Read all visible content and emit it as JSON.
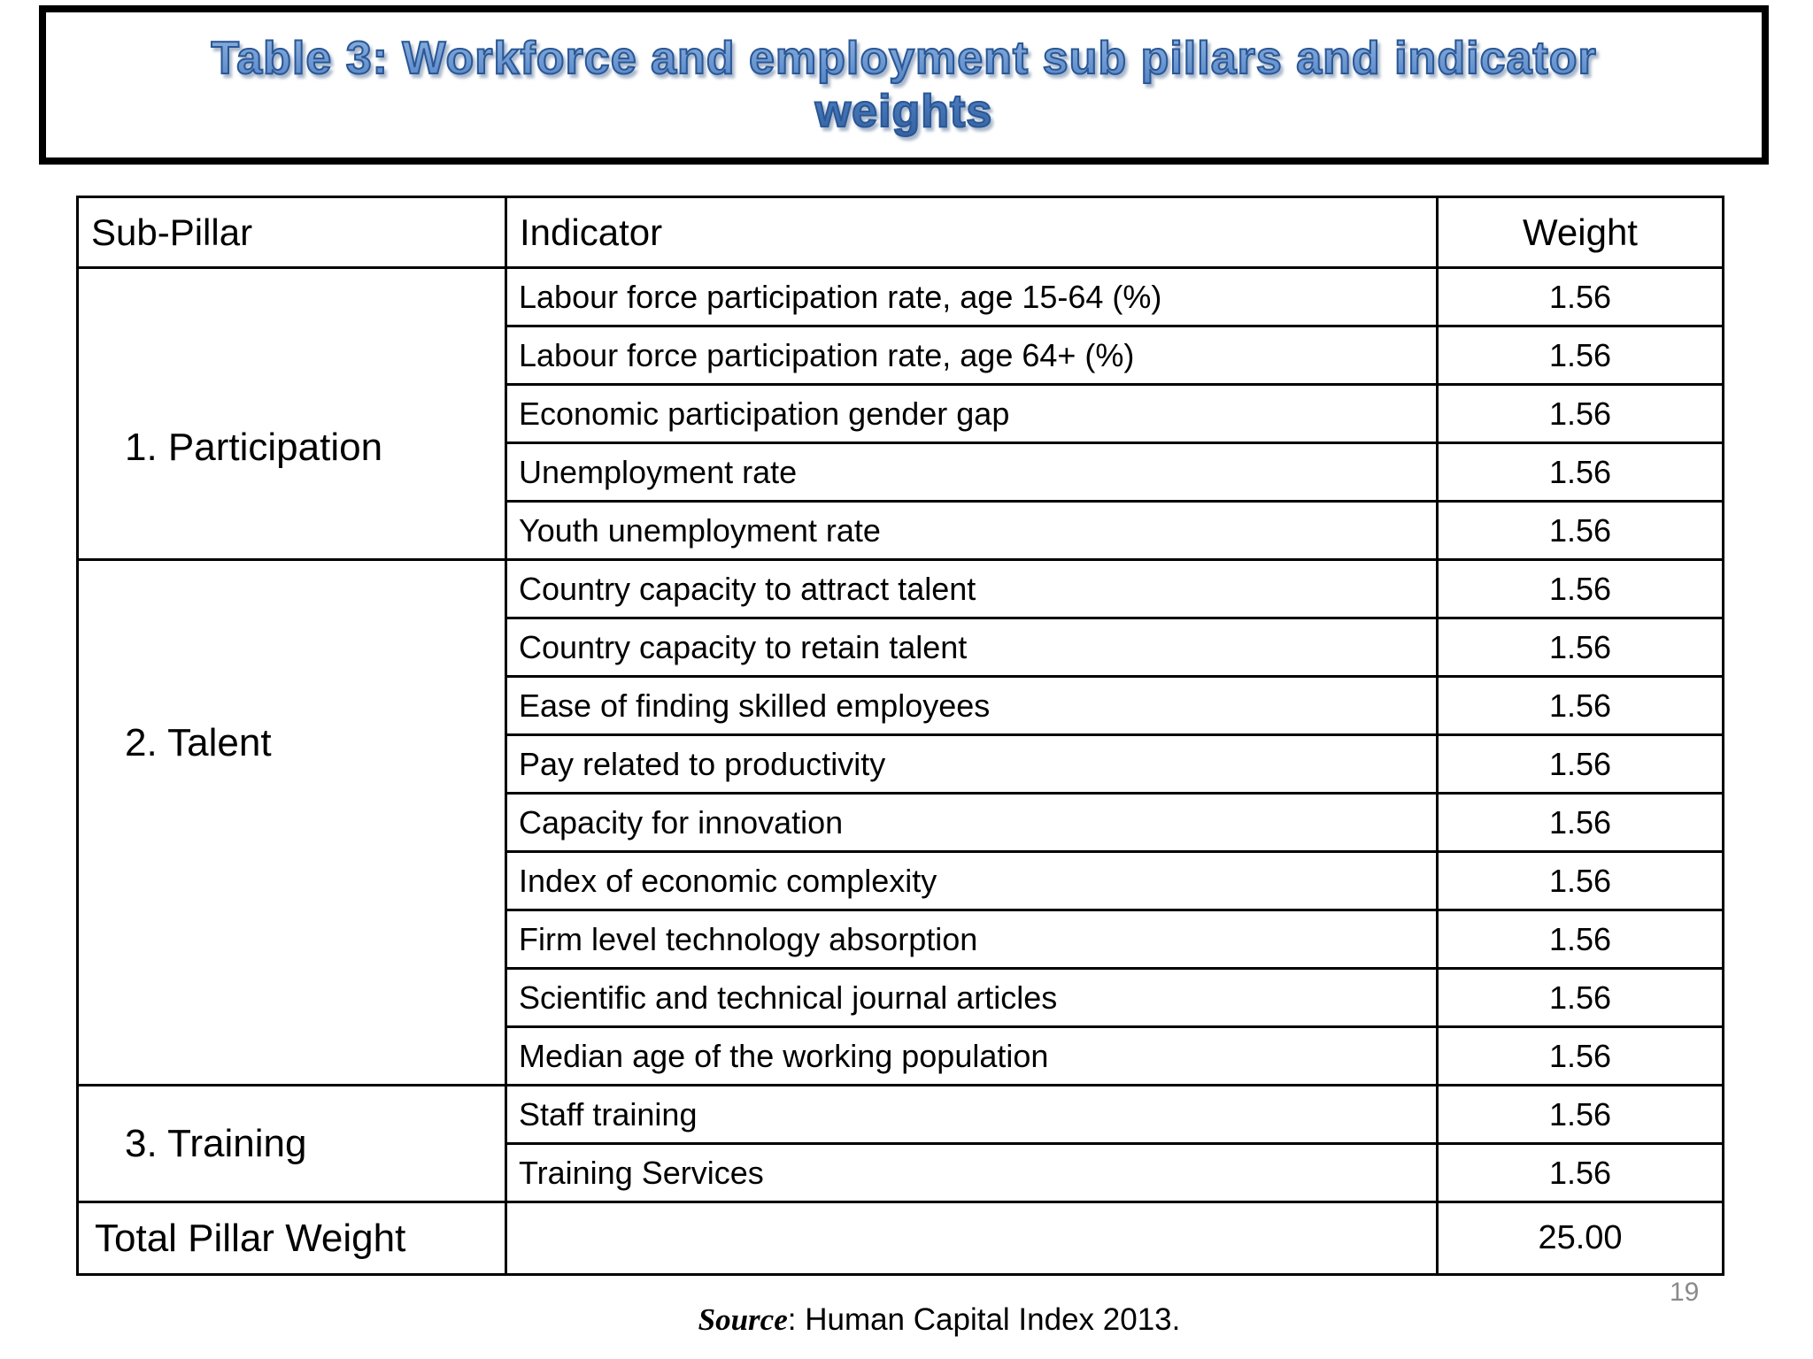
{
  "slide": {
    "title": "Table 3: Workforce and employment sub pillars and indicator weights",
    "title_line1": "Table 3: Workforce and employment sub pillars and indicator",
    "title_line2": "weights",
    "source_label": "Source",
    "source_rest": ": Human Capital Index 2013.",
    "page_number": "19",
    "colors": {
      "title_blue": "#4577b8",
      "title_stroke": "#2a5795",
      "border_black": "#000000",
      "page_number_gray": "#8a8a8a",
      "background": "#ffffff"
    }
  },
  "table": {
    "columns": [
      "Sub-Pillar",
      "Indicator",
      "Weight"
    ],
    "sections": [
      {
        "pillar": "1. Participation",
        "rows": [
          {
            "indicator": "Labour force participation rate, age 15-64 (%)",
            "weight": "1.56"
          },
          {
            "indicator": "Labour force participation rate, age 64+ (%)",
            "weight": "1.56"
          },
          {
            "indicator": "Economic participation gender gap",
            "weight": "1.56"
          },
          {
            "indicator": "Unemployment rate",
            "weight": "1.56"
          },
          {
            "indicator": "Youth unemployment rate",
            "weight": "1.56"
          }
        ]
      },
      {
        "pillar": "2. Talent",
        "rows": [
          {
            "indicator": "Country capacity to attract talent",
            "weight": "1.56"
          },
          {
            "indicator": "Country capacity to retain talent",
            "weight": "1.56"
          },
          {
            "indicator": "Ease of finding skilled employees",
            "weight": "1.56"
          },
          {
            "indicator": "Pay related to productivity",
            "weight": "1.56"
          },
          {
            "indicator": "Capacity for innovation",
            "weight": "1.56"
          },
          {
            "indicator": "Index of economic complexity",
            "weight": "1.56"
          },
          {
            "indicator": "Firm level technology absorption",
            "weight": "1.56"
          },
          {
            "indicator": "Scientific and technical journal articles",
            "weight": "1.56"
          },
          {
            "indicator": "Median age of the working population",
            "weight": "1.56"
          }
        ]
      },
      {
        "pillar": "3. Training",
        "rows": [
          {
            "indicator": "Staff training",
            "weight": "1.56"
          },
          {
            "indicator": "Training Services",
            "weight": "1.56"
          }
        ]
      }
    ],
    "total": {
      "label": "Total Pillar Weight",
      "indicator": "",
      "weight": "25.00"
    }
  }
}
